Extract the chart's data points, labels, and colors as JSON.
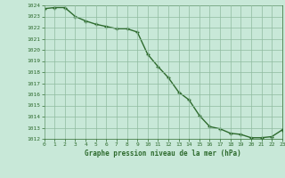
{
  "x": [
    0,
    1,
    2,
    3,
    4,
    5,
    6,
    7,
    8,
    9,
    10,
    11,
    12,
    13,
    14,
    15,
    16,
    17,
    18,
    19,
    20,
    21,
    22,
    23
  ],
  "y": [
    1023.7,
    1023.8,
    1023.8,
    1023.0,
    1022.6,
    1022.3,
    1022.1,
    1021.9,
    1021.9,
    1021.6,
    1019.6,
    1018.5,
    1017.5,
    1016.2,
    1015.5,
    1014.1,
    1013.1,
    1012.9,
    1012.5,
    1012.4,
    1012.1,
    1012.1,
    1012.2,
    1012.8
  ],
  "ylim": [
    1012,
    1024
  ],
  "xlim": [
    0,
    23
  ],
  "yticks": [
    1012,
    1013,
    1014,
    1015,
    1016,
    1017,
    1018,
    1019,
    1020,
    1021,
    1022,
    1023,
    1024
  ],
  "xticks": [
    0,
    1,
    2,
    3,
    4,
    5,
    6,
    7,
    8,
    9,
    10,
    11,
    12,
    13,
    14,
    15,
    16,
    17,
    18,
    19,
    20,
    21,
    22,
    23
  ],
  "line_color": "#2d6a2d",
  "marker": "+",
  "marker_color": "#2d6a2d",
  "bg_color": "#c8e8d8",
  "grid_color": "#8fbb9f",
  "xlabel": "Graphe pression niveau de la mer (hPa)",
  "xlabel_color": "#2d6a2d",
  "tick_color": "#2d6a2d",
  "axis_color": "#2d6a2d",
  "linewidth": 1.0,
  "markersize": 3
}
